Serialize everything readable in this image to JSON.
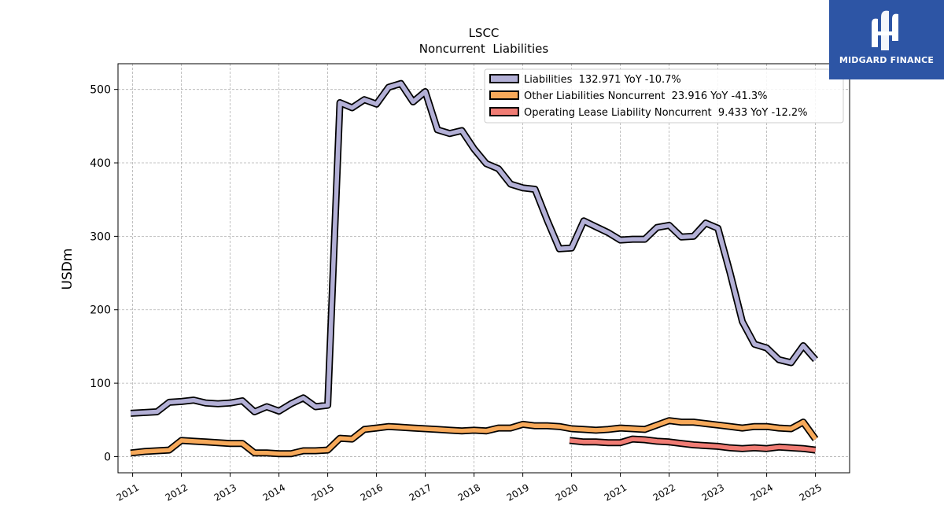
{
  "chart_data": {
    "type": "line",
    "title": "LSCC",
    "subtitle": "Noncurrent  Liabilities",
    "ylabel": "USDm",
    "xlabel": "",
    "ylim": [
      -22,
      535
    ],
    "xlim": [
      2010.7,
      2025.7
    ],
    "yticks": [
      0,
      100,
      200,
      300,
      400,
      500
    ],
    "xticks": [
      "2011",
      "2012",
      "2013",
      "2014",
      "2015",
      "2016",
      "2017",
      "2018",
      "2019",
      "2020",
      "2021",
      "2022",
      "2023",
      "2024",
      "2025"
    ],
    "grid": true,
    "legend_position": "top-right",
    "series": [
      {
        "name": "Liabilities  132.971 YoY -10.7%",
        "color": "#b3b0d6",
        "x": [
          2010.96,
          2011.25,
          2011.5,
          2011.75,
          2012.0,
          2012.25,
          2012.5,
          2012.75,
          2013.0,
          2013.25,
          2013.5,
          2013.75,
          2014.0,
          2014.25,
          2014.5,
          2014.75,
          2015.0,
          2015.25,
          2015.5,
          2015.75,
          2016.0,
          2016.25,
          2016.5,
          2016.75,
          2017.0,
          2017.25,
          2017.5,
          2017.75,
          2018.0,
          2018.25,
          2018.5,
          2018.75,
          2019.0,
          2019.25,
          2019.5,
          2019.75,
          2020.0,
          2020.25,
          2020.5,
          2020.75,
          2021.0,
          2021.25,
          2021.5,
          2021.75,
          2022.0,
          2022.25,
          2022.5,
          2022.75,
          2023.0,
          2023.25,
          2023.5,
          2023.75,
          2024.0,
          2024.25,
          2024.5,
          2024.75,
          2025.0
        ],
        "values": [
          59,
          60,
          61,
          74,
          75,
          77,
          73,
          72,
          73,
          76,
          61,
          68,
          62,
          72,
          80,
          68,
          70,
          482,
          475,
          486,
          480,
          503,
          508,
          483,
          497,
          445,
          440,
          444,
          419,
          399,
          392,
          371,
          366,
          364,
          322,
          283,
          284,
          321,
          313,
          305,
          295,
          296,
          296,
          312,
          315,
          299,
          300,
          318,
          311,
          250,
          184,
          153,
          148,
          132,
          128,
          151,
          132
        ]
      },
      {
        "name": "Other Liabilities Noncurrent  23.916 YoY -41.3%",
        "color": "#f7a95a",
        "x": [
          2010.96,
          2011.25,
          2011.5,
          2011.75,
          2012.0,
          2012.25,
          2012.5,
          2012.75,
          2013.0,
          2013.25,
          2013.5,
          2013.75,
          2014.0,
          2014.25,
          2014.5,
          2014.75,
          2015.0,
          2015.25,
          2015.5,
          2015.75,
          2016.0,
          2016.25,
          2016.5,
          2016.75,
          2017.0,
          2017.25,
          2017.5,
          2017.75,
          2018.0,
          2018.25,
          2018.5,
          2018.75,
          2019.0,
          2019.25,
          2019.5,
          2019.75,
          2020.0,
          2020.25,
          2020.5,
          2020.75,
          2021.0,
          2021.25,
          2021.5,
          2021.75,
          2022.0,
          2022.25,
          2022.5,
          2022.75,
          2023.0,
          2023.25,
          2023.5,
          2023.75,
          2024.0,
          2024.25,
          2024.5,
          2024.75,
          2025.0
        ],
        "values": [
          5,
          7,
          8,
          9,
          22,
          21,
          20,
          19,
          18,
          18,
          5,
          5,
          4,
          4,
          8,
          8,
          9,
          25,
          24,
          37,
          39,
          41,
          40,
          39,
          38,
          37,
          36,
          35,
          36,
          35,
          39,
          39,
          44,
          42,
          42,
          41,
          38,
          37,
          36,
          37,
          39,
          38,
          37,
          43,
          49,
          47,
          47,
          45,
          43,
          41,
          39,
          41,
          41,
          39,
          38,
          47,
          24
        ]
      },
      {
        "name": "Operating Lease Liability Noncurrent  9.433 YoY -12.2%",
        "color": "#f07c74",
        "x": [
          2019.96,
          2020.25,
          2020.5,
          2020.75,
          2021.0,
          2021.25,
          2021.5,
          2021.75,
          2022.0,
          2022.25,
          2022.5,
          2022.75,
          2023.0,
          2023.25,
          2023.5,
          2023.75,
          2024.0,
          2024.25,
          2024.5,
          2024.75,
          2025.0
        ],
        "values": [
          22,
          20,
          20,
          19,
          19,
          24,
          23,
          21,
          20,
          18,
          16,
          15,
          14,
          12,
          11,
          12,
          11,
          13,
          12,
          11,
          9
        ]
      }
    ]
  },
  "logo": {
    "text": "MIDGARD FINANCE",
    "color": "#2d55a5"
  }
}
